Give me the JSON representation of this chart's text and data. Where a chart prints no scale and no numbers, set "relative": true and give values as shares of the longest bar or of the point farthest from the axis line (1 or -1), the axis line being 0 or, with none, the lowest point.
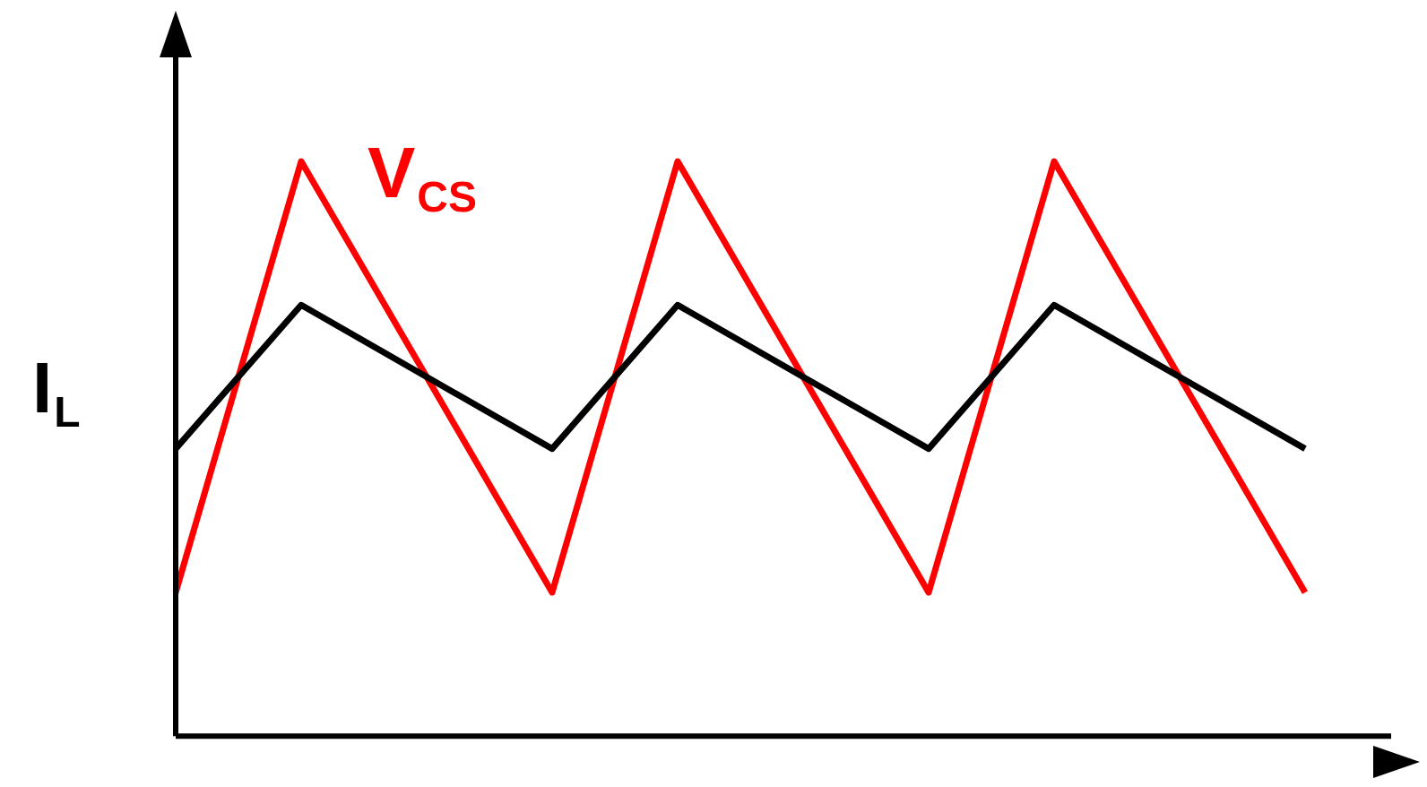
{
  "chart_data": {
    "type": "line",
    "relative": true,
    "categories": [
      null,
      null,
      null,
      null,
      null,
      null,
      null,
      null,
      null,
      null
    ],
    "legend": false,
    "grid": false,
    "marker": "none",
    "line_style": "solid",
    "series": [
      {
        "name": "I$_{L}$",
        "color": "#000000",
        "values": [
          0.5,
          0.75,
          0.625,
          0.5,
          0.75,
          0.625,
          0.5,
          0.75,
          0.625,
          0.5
        ]
      },
      {
        "name": "V$_{CS}$",
        "color": "#ff0000",
        "values": [
          0.25,
          1,
          0.625,
          0.25,
          1,
          0.625,
          0.25,
          1,
          0.625,
          0.25
        ]
      }
    ]
  }
}
